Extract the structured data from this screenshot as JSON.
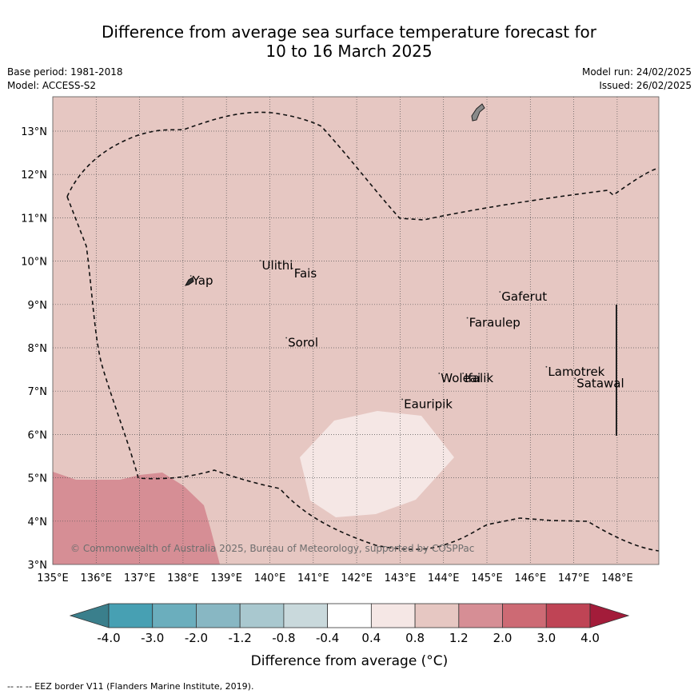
{
  "title": {
    "line1": "Difference from average sea surface temperature forecast for",
    "line2": "10 to 16 March 2025"
  },
  "meta": {
    "base_period": "Base period: 1981-2018",
    "model": "Model: ACCESS-S2",
    "model_run": "Model run: 24/02/2025",
    "issued": "Issued: 26/02/2025"
  },
  "map": {
    "lon_ticks": [
      "135°E",
      "136°E",
      "137°E",
      "138°E",
      "139°E",
      "140°E",
      "141°E",
      "142°E",
      "143°E",
      "144°E",
      "145°E",
      "146°E",
      "147°E",
      "148°E"
    ],
    "lat_ticks": [
      "3°N",
      "4°N",
      "5°N",
      "6°N",
      "7°N",
      "8°N",
      "9°N",
      "10°N",
      "11°N",
      "12°N",
      "13°N"
    ],
    "extent": {
      "lon": [
        135,
        149
      ],
      "lat": [
        3,
        13.8
      ]
    },
    "background_color": "#e6c7c2",
    "places": [
      {
        "name": "Yap",
        "lon": 138.18,
        "lat": 9.55
      },
      {
        "name": "Ulithi",
        "lon": 139.78,
        "lat": 9.9
      },
      {
        "name": "Fais",
        "lon": 140.52,
        "lat": 9.72
      },
      {
        "name": "Gaferut",
        "lon": 145.3,
        "lat": 9.18
      },
      {
        "name": "Faraulep",
        "lon": 144.55,
        "lat": 8.58
      },
      {
        "name": "Sorol",
        "lon": 140.38,
        "lat": 8.12
      },
      {
        "name": "Woleai",
        "lon": 143.9,
        "lat": 7.3
      },
      {
        "name": "Ifalik",
        "lon": 144.45,
        "lat": 7.3
      },
      {
        "name": "Lamotrek",
        "lon": 146.37,
        "lat": 7.45
      },
      {
        "name": "Satawal",
        "lon": 147.03,
        "lat": 7.18
      },
      {
        "name": "Eauripik",
        "lon": 143.05,
        "lat": 6.7
      }
    ],
    "copyright": "© Commonwealth of Australia 2025, Bureau of Meteorology, supported by COSPPac"
  },
  "colorbar": {
    "label": "Difference from average (°C)",
    "tick_labels": [
      "-4.0",
      "-3.0",
      "-2.0",
      "-1.2",
      "-0.8",
      "-0.4",
      "0.4",
      "0.8",
      "1.2",
      "2.0",
      "3.0",
      "4.0"
    ],
    "colors": [
      "#3a7f8c",
      "#47a0b3",
      "#6baebd",
      "#88b7c3",
      "#a9c8cf",
      "#c9d9dc",
      "#ffffff",
      "#f5e7e5",
      "#e6c7c2",
      "#d68e95",
      "#cd6a74",
      "#bf4455",
      "#a31c3a"
    ]
  },
  "credit": "--  --  -- EEZ border V11 (Flanders Marine Institute, 2019)."
}
